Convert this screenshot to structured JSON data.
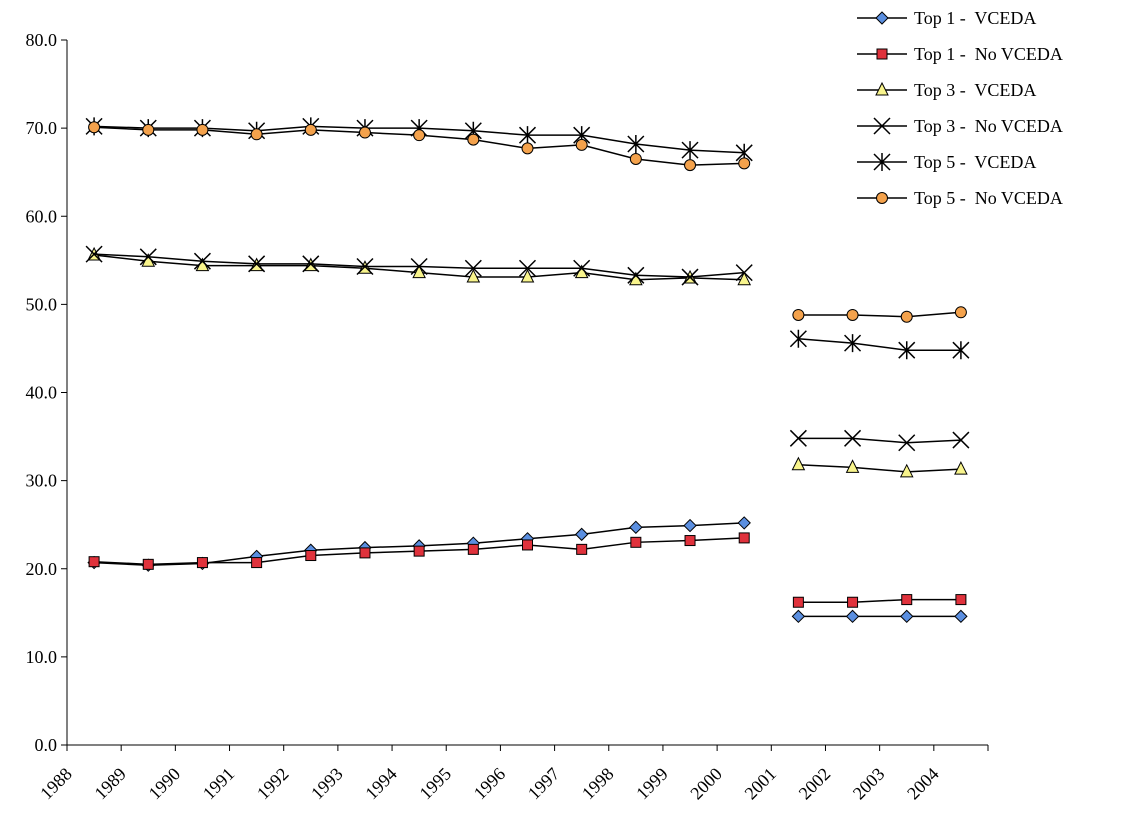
{
  "chart_data": {
    "type": "line",
    "categories": [
      "1988",
      "1989",
      "1990",
      "1991",
      "1992",
      "1993",
      "1994",
      "1995",
      "1996",
      "1997",
      "1998",
      "1999",
      "2000",
      "2001",
      "2002",
      "2003",
      "2004"
    ],
    "ylim": [
      0,
      80
    ],
    "yticks": [
      "0.0",
      "10.0",
      "20.0",
      "30.0",
      "40.0",
      "50.0",
      "60.0",
      "70.0",
      "80.0"
    ],
    "grid": false,
    "legend_position": "top-right",
    "series": [
      {
        "name": "Top 1 -  VCEDA",
        "marker": "diamond",
        "color": "#5b8fe0",
        "values": [
          20.7,
          20.4,
          20.6,
          21.4,
          22.1,
          22.4,
          22.6,
          22.9,
          23.4,
          23.9,
          24.7,
          24.9,
          25.2,
          14.6,
          14.6,
          14.6,
          14.6
        ]
      },
      {
        "name": "Top 1 -  No VCEDA",
        "marker": "square",
        "color": "#e0323c",
        "values": [
          20.8,
          20.5,
          20.7,
          20.7,
          21.5,
          21.8,
          22.0,
          22.2,
          22.7,
          22.2,
          23.0,
          23.2,
          23.5,
          16.2,
          16.2,
          16.5,
          16.5
        ]
      },
      {
        "name": "Top 3 -  VCEDA",
        "marker": "triangle",
        "color": "#f8f48c",
        "values": [
          55.6,
          54.9,
          54.4,
          54.4,
          54.4,
          54.1,
          53.6,
          53.1,
          53.1,
          53.6,
          52.8,
          53.0,
          52.8,
          31.8,
          31.5,
          31.0,
          31.3
        ]
      },
      {
        "name": "Top 3 -  No VCEDA",
        "marker": "x",
        "color": "#000000",
        "values": [
          55.7,
          55.4,
          54.9,
          54.6,
          54.6,
          54.3,
          54.3,
          54.1,
          54.1,
          54.1,
          53.3,
          53.1,
          53.6,
          34.8,
          34.8,
          34.3,
          34.6
        ]
      },
      {
        "name": "Top 5 -  VCEDA",
        "marker": "star",
        "color": "#000000",
        "values": [
          70.2,
          70.0,
          70.0,
          69.7,
          70.2,
          70.0,
          70.0,
          69.7,
          69.2,
          69.2,
          68.2,
          67.5,
          67.2,
          46.1,
          45.6,
          44.8,
          44.8
        ]
      },
      {
        "name": "Top 5 -  No VCEDA",
        "marker": "circle",
        "color": "#f4a24c",
        "values": [
          70.1,
          69.8,
          69.8,
          69.3,
          69.8,
          69.5,
          69.2,
          68.7,
          67.7,
          68.1,
          66.5,
          65.8,
          66.0,
          48.8,
          48.8,
          48.6,
          49.1
        ]
      }
    ]
  }
}
